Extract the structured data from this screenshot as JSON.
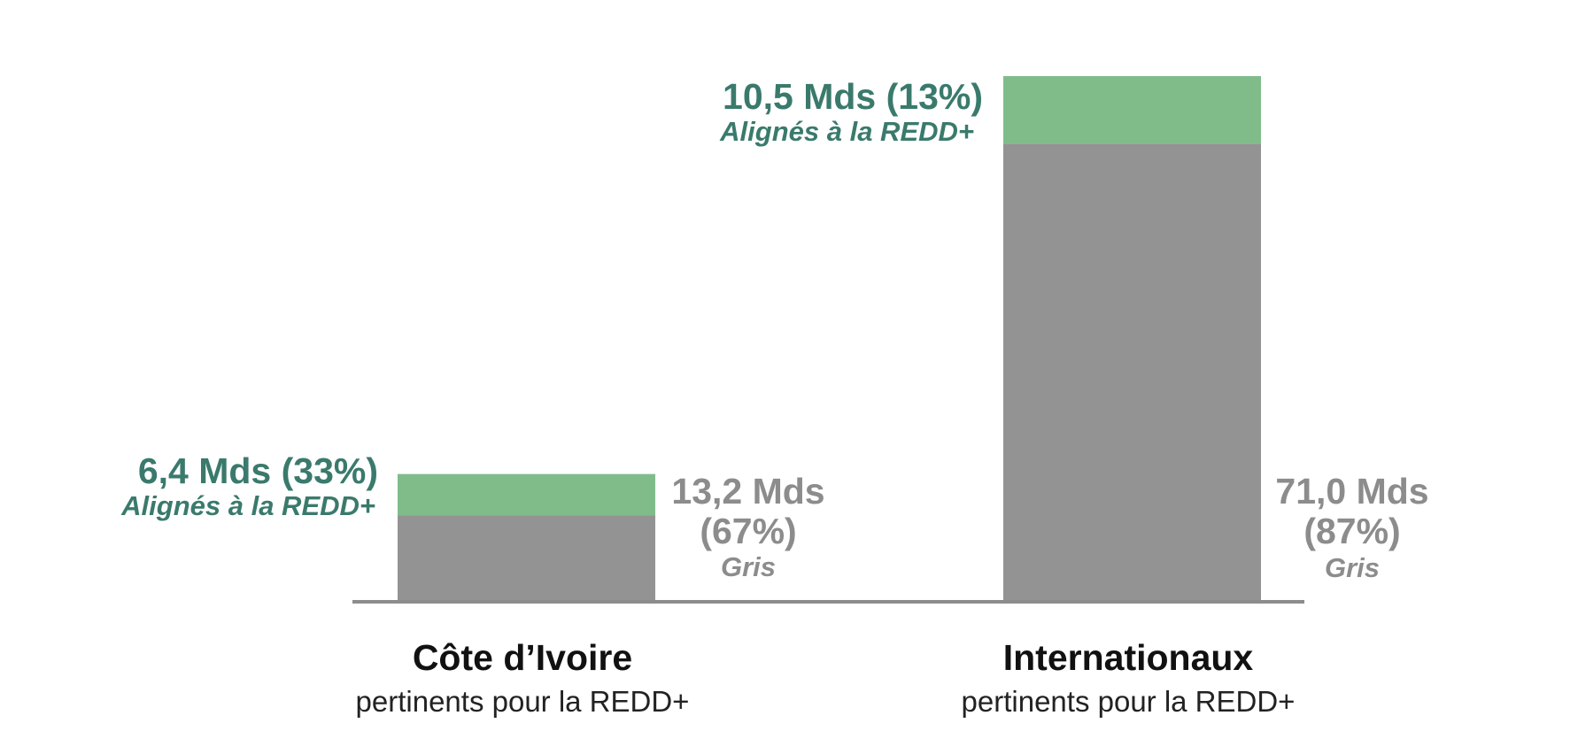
{
  "chart_data": {
    "type": "bar",
    "stacked": true,
    "categories": [
      "Côte d’Ivoire",
      "Internationaux"
    ],
    "category_subtitles": [
      "pertinents pour la REDD+",
      "pertinents pour la REDD+"
    ],
    "ylim": [
      0,
      81.5
    ],
    "series": [
      {
        "name": "Gris",
        "color": "#939393",
        "values": [
          13.2,
          71.0
        ],
        "value_labels": [
          "13,2 Mds",
          "71,0 Mds"
        ],
        "percent_labels": [
          "(67%)",
          "(87%)"
        ],
        "label_suffix": "Gris"
      },
      {
        "name": "Alignés à la REDD+",
        "color": "#80bc8a",
        "values": [
          6.4,
          10.5
        ],
        "value_labels": [
          "6,4 Mds (33%)",
          "10,5 Mds (13%)"
        ],
        "label_suffix": "Alignés à la REDD+"
      }
    ],
    "baseline_color": "#8c8c8c",
    "label_colors": {
      "aligned": "#3a7a6c",
      "grey": "#8c8c8c"
    }
  }
}
